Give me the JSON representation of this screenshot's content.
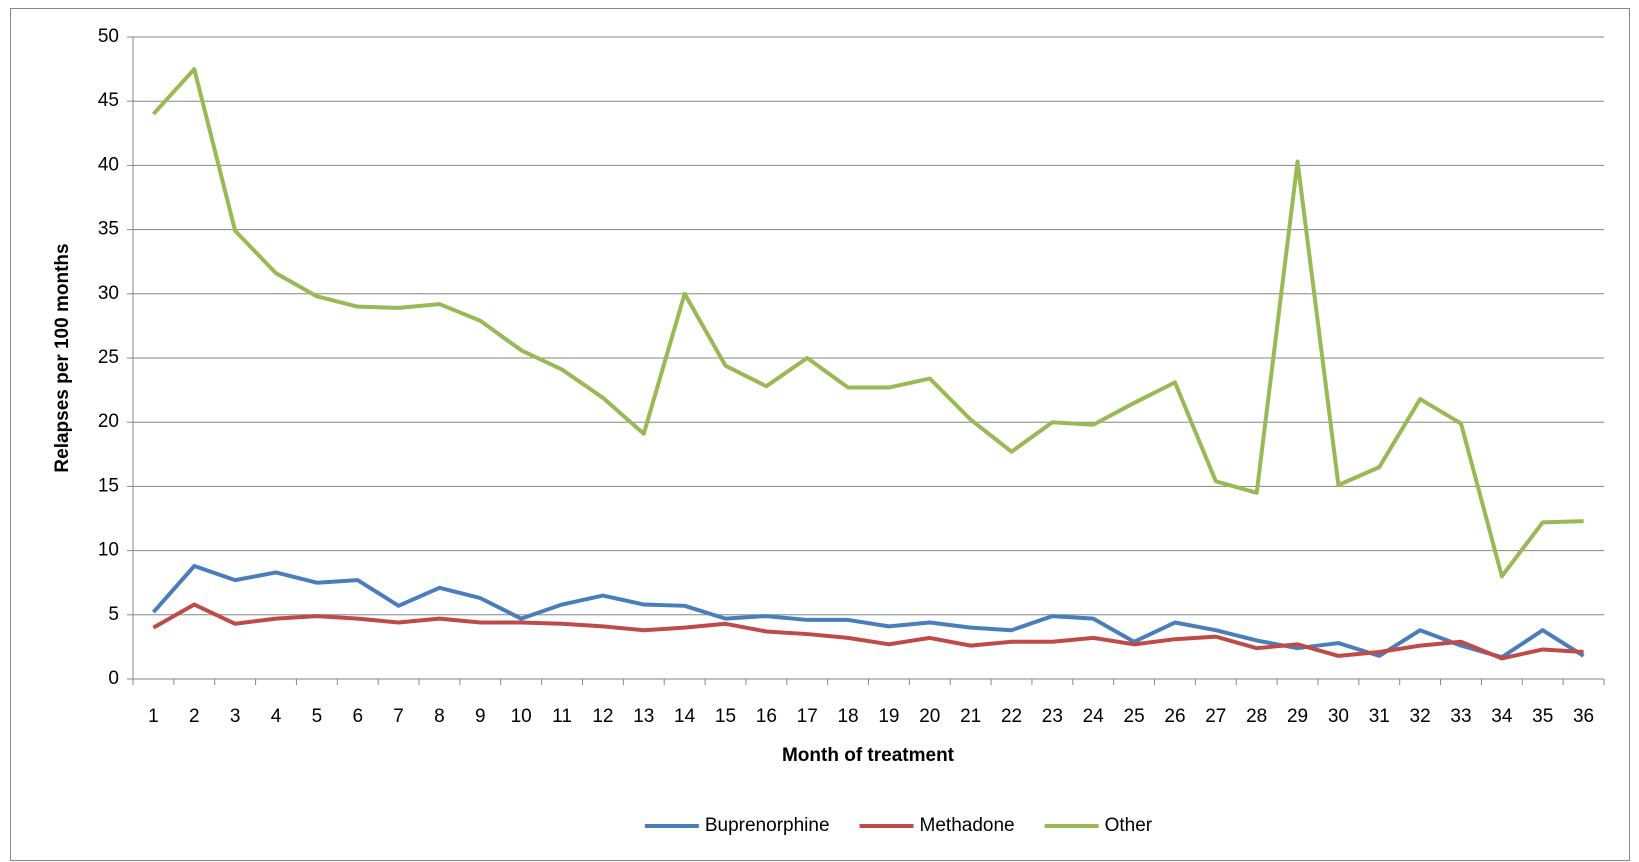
{
  "chart_data": {
    "type": "line",
    "x_label": "Month of treatment",
    "y_label": "Relapses per 100 months",
    "categories": [
      "1",
      "2",
      "3",
      "4",
      "5",
      "6",
      "7",
      "8",
      "9",
      "10",
      "11",
      "12",
      "13",
      "14",
      "15",
      "16",
      "17",
      "18",
      "19",
      "20",
      "21",
      "22",
      "23",
      "24",
      "25",
      "26",
      "27",
      "28",
      "29",
      "30",
      "31",
      "32",
      "33",
      "34",
      "35",
      "36"
    ],
    "series": [
      {
        "name": "Buprenorphine",
        "color": "#4a7ebb",
        "values": [
          5.2,
          8.8,
          7.7,
          8.3,
          7.5,
          7.7,
          5.7,
          7.1,
          6.3,
          4.7,
          5.8,
          6.5,
          5.8,
          5.7,
          4.7,
          4.9,
          4.6,
          4.6,
          4.1,
          4.4,
          4.0,
          3.8,
          4.9,
          4.7,
          2.9,
          4.4,
          3.8,
          3.0,
          2.4,
          2.8,
          1.8,
          3.8,
          2.6,
          1.7,
          3.8,
          1.8
        ]
      },
      {
        "name": "Methadone",
        "color": "#be4b48",
        "values": [
          4.0,
          5.8,
          4.3,
          4.7,
          4.9,
          4.7,
          4.4,
          4.7,
          4.4,
          4.4,
          4.3,
          4.1,
          3.8,
          4.0,
          4.3,
          3.7,
          3.5,
          3.2,
          2.7,
          3.2,
          2.6,
          2.9,
          2.9,
          3.2,
          2.7,
          3.1,
          3.3,
          2.4,
          2.7,
          1.8,
          2.1,
          2.6,
          2.9,
          1.6,
          2.3,
          2.1
        ]
      },
      {
        "name": "Other",
        "color": "#98b954",
        "values": [
          44.0,
          47.5,
          34.9,
          31.6,
          29.8,
          29.0,
          28.9,
          29.2,
          27.9,
          25.6,
          24.1,
          21.9,
          19.1,
          30.0,
          24.4,
          22.8,
          25.0,
          22.7,
          22.7,
          23.4,
          20.2,
          17.7,
          20.0,
          19.8,
          21.5,
          23.1,
          15.4,
          14.5,
          40.3,
          15.1,
          16.5,
          21.8,
          19.9,
          8.0,
          12.2,
          12.3
        ]
      }
    ],
    "ylim": [
      0,
      50
    ],
    "yticks": [
      0,
      5,
      10,
      15,
      20,
      25,
      30,
      35,
      40,
      45,
      50
    ],
    "grid": true,
    "legend": "bottom"
  }
}
